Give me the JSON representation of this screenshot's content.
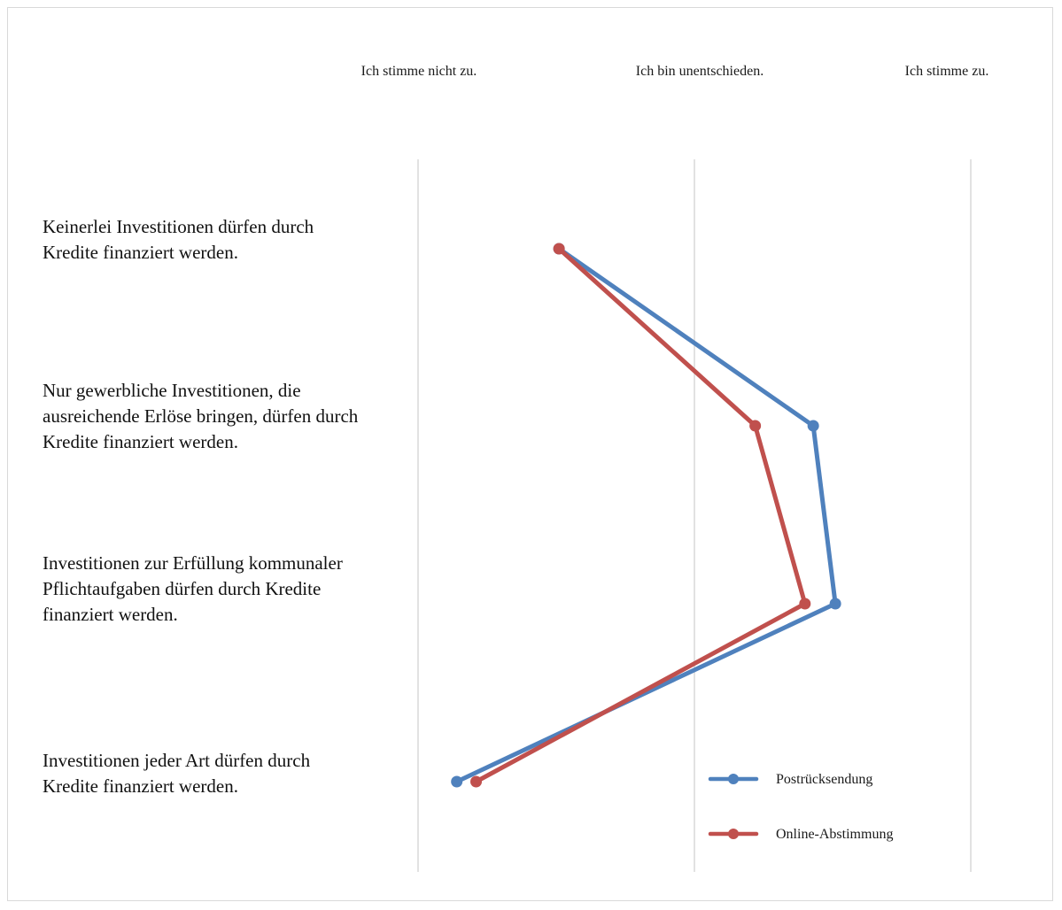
{
  "chart_data": {
    "type": "line",
    "orientation": "horizontal",
    "x_labels": [
      "Ich stimme nicht zu.",
      "Ich bin unentschieden.",
      "Ich stimme zu."
    ],
    "xlim": [
      1,
      3
    ],
    "grid": true,
    "legend_position": "bottom-right",
    "categories": [
      "Keinerlei Investitionen dürfen durch Kredite finanziert werden.",
      "Nur gewerbliche Investitionen, die ausreichende Erlöse bringen, dürfen durch Kredite finanziert werden.",
      "Investitionen zur Erfüllung kommunaler Pflichtaufgaben dürfen durch Kredite finanziert werden.",
      "Investitionen jeder Art dürfen durch Kredite finanziert werden."
    ],
    "series": [
      {
        "name": "Postrücksendung",
        "color": "#4f81bd",
        "values": [
          1.51,
          2.43,
          2.51,
          1.14
        ]
      },
      {
        "name": "Online-Abstimmung",
        "color": "#c0504d",
        "values": [
          1.51,
          2.22,
          2.4,
          1.21
        ]
      }
    ]
  }
}
